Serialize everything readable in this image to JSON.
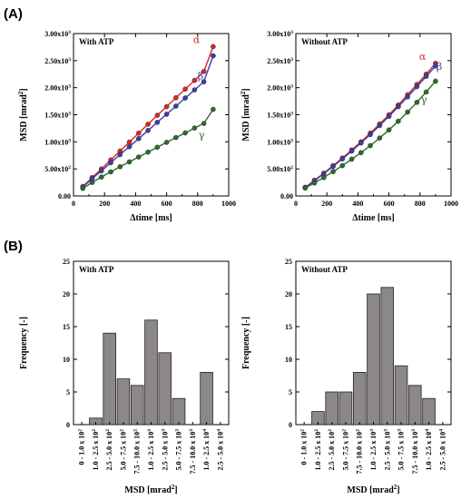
{
  "panels": {
    "a": "(A)",
    "b": "(B)"
  },
  "chart_data": [
    {
      "type": "line",
      "title": "With ATP",
      "xlabel": "Δtime [ms]",
      "ylabel": "MSD [mrad²]",
      "xlim": [
        0,
        1000
      ],
      "ylim": [
        0,
        3000
      ],
      "xticks": [
        0,
        200,
        400,
        600,
        800,
        1000
      ],
      "xtick_labels": [
        "0",
        "200",
        "400",
        "600",
        "800",
        "1000"
      ],
      "yticks": [
        0,
        500,
        1000,
        1500,
        2000,
        2500,
        3000
      ],
      "ytick_labels": [
        "0.00",
        "5.00x10²",
        "1.00x10³",
        "1.50x10³",
        "2.00x10³",
        "2.50x10³",
        "3.00x10³"
      ],
      "x": [
        60,
        120,
        180,
        240,
        300,
        360,
        420,
        480,
        540,
        600,
        660,
        720,
        780,
        840,
        900
      ],
      "series": [
        {
          "name": "α",
          "color": "#d62728",
          "values": [
            175,
            340,
            500,
            665,
            830,
            995,
            1160,
            1325,
            1490,
            1650,
            1815,
            1975,
            2135,
            2300,
            2760
          ]
        },
        {
          "name": "β",
          "color": "#3b3fa0",
          "values": [
            165,
            320,
            465,
            615,
            765,
            910,
            1060,
            1210,
            1360,
            1510,
            1660,
            1810,
            1960,
            2110,
            2590
          ]
        },
        {
          "name": "γ",
          "color": "#2e6b2e",
          "values": [
            140,
            250,
            350,
            445,
            540,
            630,
            720,
            810,
            900,
            990,
            1080,
            1165,
            1255,
            1340,
            1600
          ]
        }
      ]
    },
    {
      "type": "line",
      "title": "Without ATP",
      "xlabel": "Δtime [ms]",
      "ylabel": "MSD [mrad²]",
      "xlim": [
        0,
        1000
      ],
      "ylim": [
        0,
        3000
      ],
      "xticks": [
        0,
        200,
        400,
        600,
        800,
        1000
      ],
      "xtick_labels": [
        "0",
        "200",
        "400",
        "600",
        "800",
        "1000"
      ],
      "yticks": [
        0,
        500,
        1000,
        1500,
        2000,
        2500,
        3000
      ],
      "ytick_labels": [
        "0.00",
        "5.00x10²",
        "1.00x10³",
        "1.50x10³",
        "2.00x10³",
        "2.50x10³",
        "3.00x10³"
      ],
      "x": [
        60,
        120,
        180,
        240,
        300,
        360,
        420,
        480,
        540,
        600,
        660,
        720,
        780,
        840,
        900
      ],
      "series": [
        {
          "name": "α",
          "color": "#d62728",
          "values": [
            160,
            290,
            420,
            560,
            700,
            850,
            1000,
            1160,
            1330,
            1500,
            1680,
            1870,
            2060,
            2250,
            2450
          ]
        },
        {
          "name": "β",
          "color": "#3b3fa0",
          "values": [
            155,
            280,
            410,
            545,
            685,
            830,
            980,
            1135,
            1300,
            1470,
            1650,
            1830,
            2020,
            2210,
            2400
          ]
        },
        {
          "name": "γ",
          "color": "#2e6b2e",
          "values": [
            145,
            240,
            340,
            450,
            560,
            680,
            800,
            930,
            1070,
            1220,
            1380,
            1550,
            1730,
            1920,
            2120
          ]
        }
      ]
    },
    {
      "type": "bar",
      "title": "With ATP",
      "xlabel": "MSD [mrad²]",
      "ylabel": "Frequency [-]",
      "ylim": [
        0,
        25
      ],
      "yticks": [
        0,
        5,
        10,
        15,
        20,
        25
      ],
      "categories": [
        "0 - 1.0 x 10²",
        "1.0 - 2.5 x 10²",
        "2.5 - 5.0 x 10²",
        "5.0 - 7.5 x 10²",
        "7.5 - 10.0 x 10²",
        "1.0 - 2.5 x 10³",
        "2.5 - 5.0 x 10³",
        "5.0 - 7.5 x 10³",
        "7.5 - 10.0 x 10³",
        "1.0 - 2.5 x 10⁴",
        "2.5 - 5.0 x 10⁴"
      ],
      "values": [
        0,
        1,
        14,
        7,
        6,
        16,
        11,
        4,
        0,
        8,
        0
      ],
      "bar_color": "#8c8889"
    },
    {
      "type": "bar",
      "title": "Without ATP",
      "xlabel": "MSD [mrad²]",
      "ylabel": "Frequency [-]",
      "ylim": [
        0,
        25
      ],
      "yticks": [
        0,
        5,
        10,
        15,
        20,
        25
      ],
      "categories": [
        "0 - 1.0 x 10²",
        "1.0 - 2.5 x 10²",
        "2.5 - 5.0 x 10²",
        "5.0 - 7.5 x 10²",
        "7.5 - 10.0 x 10²",
        "1.0 - 2.5 x 10³",
        "2.5 - 5.0 x 10³",
        "5.0 - 7.5 x 10³",
        "7.5 - 10.0 x 10³",
        "1.0 - 2.5 x 10⁴",
        "2.5 - 5.0 x 10⁴"
      ],
      "values": [
        0,
        2,
        5,
        5,
        8,
        20,
        21,
        9,
        6,
        4,
        0
      ],
      "bar_color": "#8c8889"
    }
  ]
}
